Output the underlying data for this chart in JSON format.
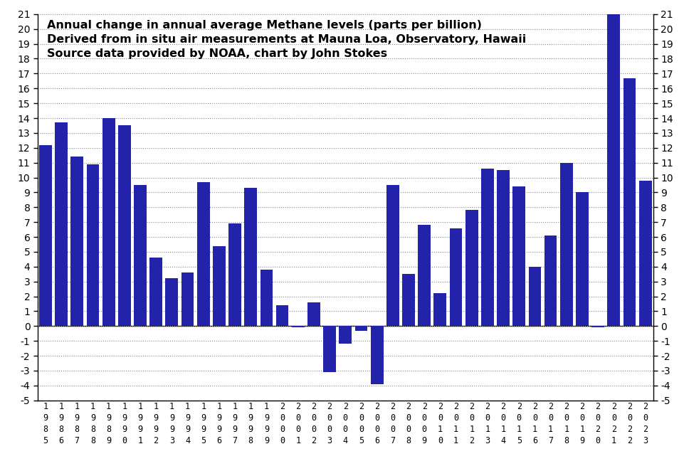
{
  "years": [
    1985,
    1986,
    1987,
    1988,
    1989,
    1990,
    1991,
    1992,
    1993,
    1994,
    1995,
    1996,
    1997,
    1998,
    1999,
    2000,
    2001,
    2002,
    2003,
    2004,
    2005,
    2006,
    2007,
    2008,
    2009,
    2010,
    2011,
    2012,
    2013,
    2014,
    2015,
    2016,
    2017,
    2018,
    2019,
    2020,
    2021,
    2022,
    2023
  ],
  "values": [
    12.2,
    13.7,
    11.4,
    10.9,
    14.0,
    13.5,
    9.5,
    4.6,
    3.2,
    3.6,
    9.7,
    5.4,
    6.9,
    9.3,
    3.8,
    1.4,
    -0.1,
    1.6,
    -3.1,
    -1.2,
    -0.3,
    -3.9,
    9.5,
    3.5,
    6.8,
    2.2,
    6.6,
    7.8,
    10.6,
    10.5,
    9.4,
    4.0,
    6.1,
    11.0,
    9.0,
    -0.1,
    21.0,
    16.7,
    9.8
  ],
  "bar_color": "#2222aa",
  "title_line1": "Annual change in annual average Methane levels (parts per billion)",
  "title_line2": "Derived from in situ air measurements at Mauna Loa, Observatory, Hawaii",
  "title_line3": "Source data provided by NOAA, chart by John Stokes",
  "ylim": [
    -5,
    21
  ],
  "yticks": [
    -5,
    -4,
    -3,
    -2,
    -1,
    0,
    1,
    2,
    3,
    4,
    5,
    6,
    7,
    8,
    9,
    10,
    11,
    12,
    13,
    14,
    15,
    16,
    17,
    18,
    19,
    20,
    21
  ],
  "background_color": "#ffffff",
  "grid_color": "#888888",
  "title_fontsize": 11.5,
  "tick_fontsize": 10
}
